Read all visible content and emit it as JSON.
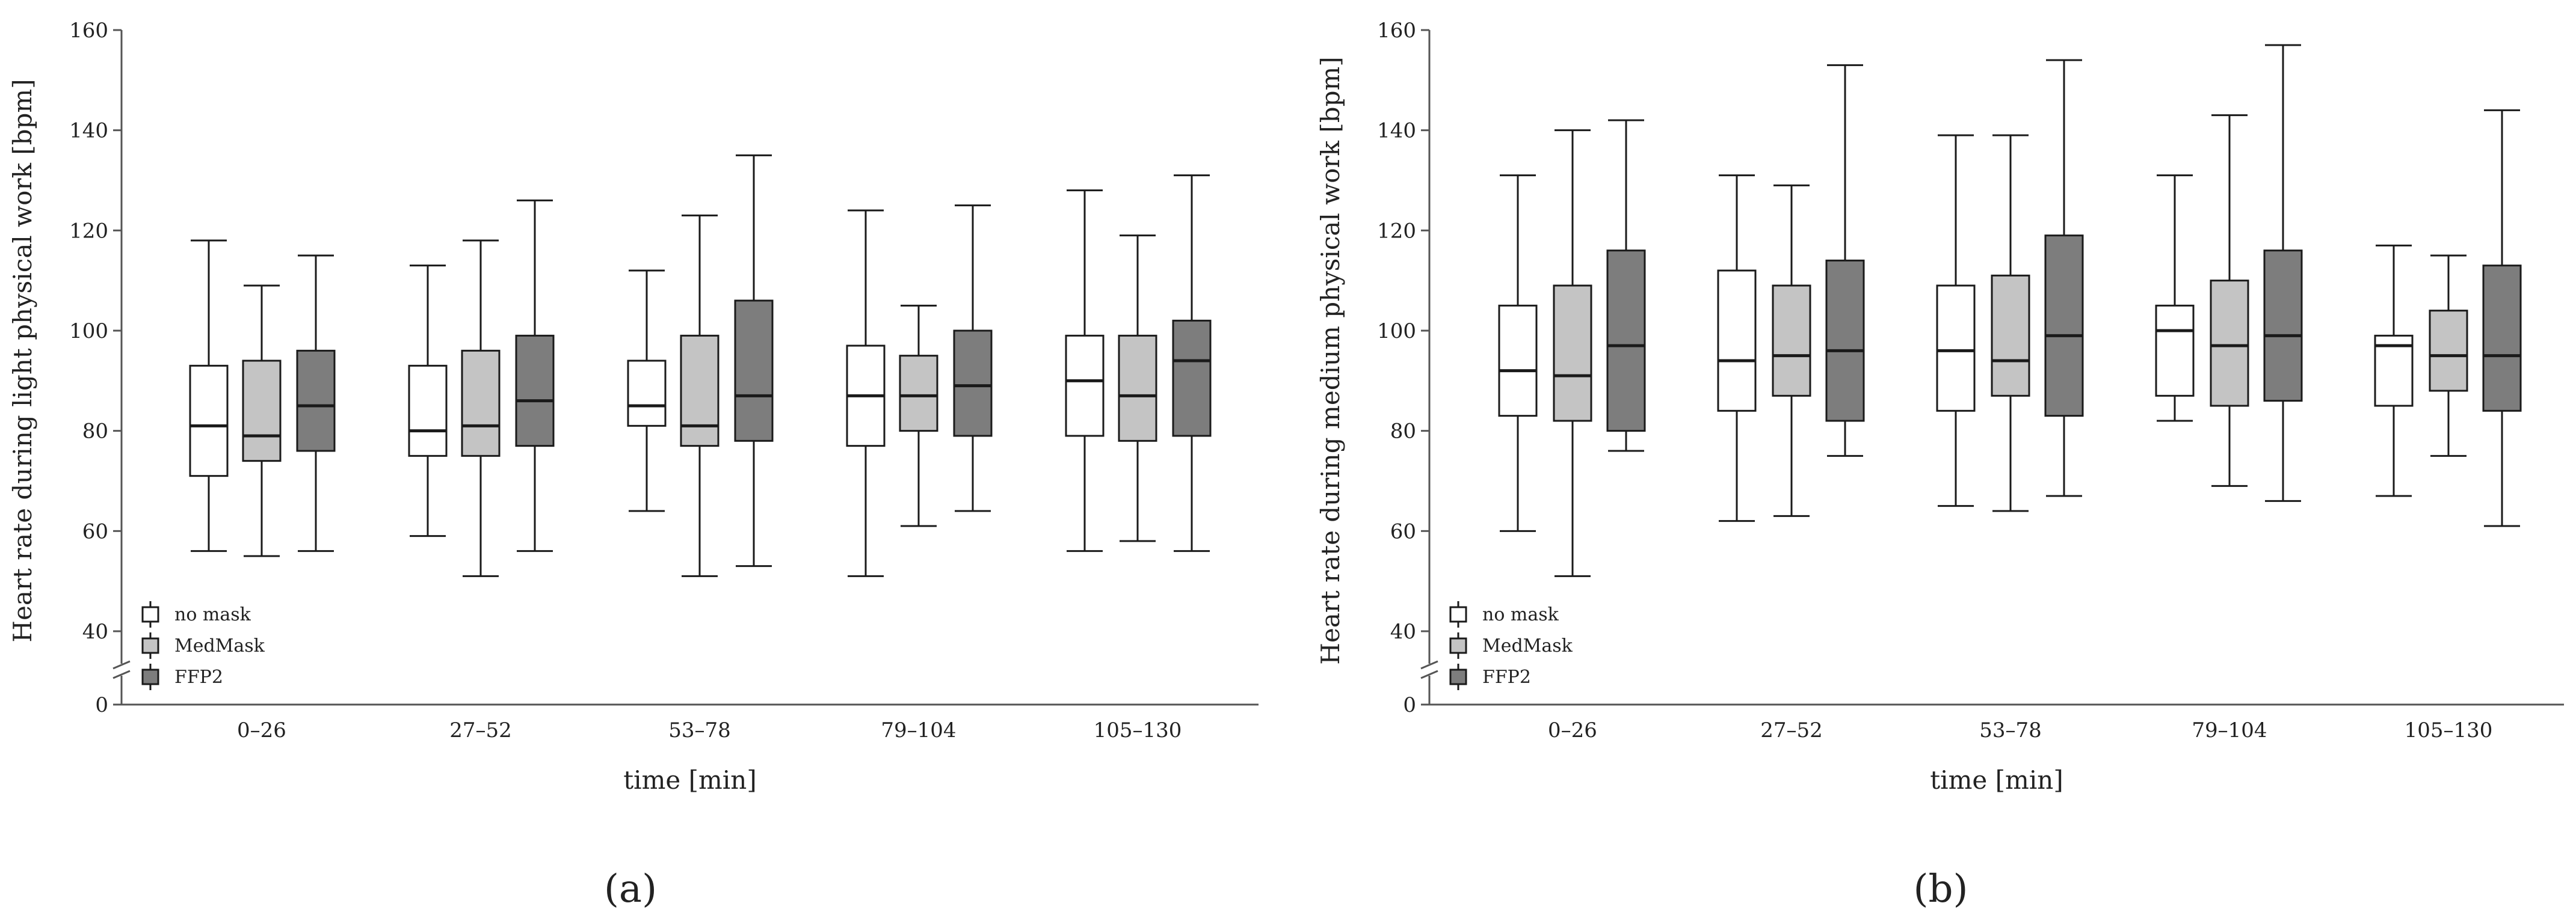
{
  "colors": {
    "nomask": "#ffffff",
    "medmask": "#c4c4c4",
    "ffp2": "#7d7d7d",
    "stroke": "#1a1a1a",
    "axis": "#555555"
  },
  "legend": [
    {
      "label": "no mask",
      "color": "#ffffff"
    },
    {
      "label": "MedMask",
      "color": "#c4c4c4"
    },
    {
      "label": "FFP2",
      "color": "#7d7d7d"
    }
  ],
  "chart_data": [
    {
      "type": "boxplot",
      "panel": "a",
      "panel_label": "(a)",
      "xlabel": "time [min]",
      "ylabel": "Heart rate during light physical work [bpm]",
      "ylim": [
        0,
        160
      ],
      "axis_break": [
        0,
        40
      ],
      "yticks": [
        0,
        40,
        60,
        80,
        100,
        120,
        140,
        160
      ],
      "categories": [
        "0–26",
        "27–52",
        "53–78",
        "79–104",
        "105–130"
      ],
      "series": [
        {
          "name": "no mask",
          "boxes": [
            {
              "min": 56,
              "q1": 71,
              "median": 81,
              "q3": 93,
              "max": 118
            },
            {
              "min": 59,
              "q1": 75,
              "median": 80,
              "q3": 93,
              "max": 113
            },
            {
              "min": 64,
              "q1": 81,
              "median": 85,
              "q3": 94,
              "max": 112
            },
            {
              "min": 51,
              "q1": 77,
              "median": 87,
              "q3": 97,
              "max": 124
            },
            {
              "min": 56,
              "q1": 79,
              "median": 90,
              "q3": 99,
              "max": 128
            }
          ]
        },
        {
          "name": "MedMask",
          "boxes": [
            {
              "min": 55,
              "q1": 74,
              "median": 79,
              "q3": 94,
              "max": 109
            },
            {
              "min": 51,
              "q1": 75,
              "median": 81,
              "q3": 96,
              "max": 118
            },
            {
              "min": 51,
              "q1": 77,
              "median": 81,
              "q3": 99,
              "max": 123
            },
            {
              "min": 61,
              "q1": 80,
              "median": 87,
              "q3": 95,
              "max": 105
            },
            {
              "min": 58,
              "q1": 78,
              "median": 87,
              "q3": 99,
              "max": 119
            }
          ]
        },
        {
          "name": "FFP2",
          "boxes": [
            {
              "min": 56,
              "q1": 76,
              "median": 85,
              "q3": 96,
              "max": 115
            },
            {
              "min": 56,
              "q1": 77,
              "median": 86,
              "q3": 99,
              "max": 126
            },
            {
              "min": 53,
              "q1": 78,
              "median": 87,
              "q3": 106,
              "max": 135
            },
            {
              "min": 64,
              "q1": 79,
              "median": 89,
              "q3": 100,
              "max": 125
            },
            {
              "min": 56,
              "q1": 79,
              "median": 94,
              "q3": 102,
              "max": 131
            }
          ]
        }
      ]
    },
    {
      "type": "boxplot",
      "panel": "b",
      "panel_label": "(b)",
      "xlabel": "time [min]",
      "ylabel": "Heart rate during medium physical work [bpm]",
      "ylim": [
        0,
        160
      ],
      "axis_break": [
        0,
        40
      ],
      "yticks": [
        0,
        40,
        60,
        80,
        100,
        120,
        140,
        160
      ],
      "categories": [
        "0–26",
        "27–52",
        "53–78",
        "79–104",
        "105–130"
      ],
      "series": [
        {
          "name": "no mask",
          "boxes": [
            {
              "min": 60,
              "q1": 83,
              "median": 92,
              "q3": 105,
              "max": 131
            },
            {
              "min": 62,
              "q1": 84,
              "median": 94,
              "q3": 112,
              "max": 131
            },
            {
              "min": 65,
              "q1": 84,
              "median": 96,
              "q3": 109,
              "max": 139
            },
            {
              "min": 82,
              "q1": 87,
              "median": 100,
              "q3": 105,
              "max": 131
            },
            {
              "min": 67,
              "q1": 85,
              "median": 97,
              "q3": 99,
              "max": 117
            }
          ]
        },
        {
          "name": "MedMask",
          "boxes": [
            {
              "min": 51,
              "q1": 82,
              "median": 91,
              "q3": 109,
              "max": 140
            },
            {
              "min": 63,
              "q1": 87,
              "median": 95,
              "q3": 109,
              "max": 129
            },
            {
              "min": 64,
              "q1": 87,
              "median": 94,
              "q3": 111,
              "max": 139
            },
            {
              "min": 69,
              "q1": 85,
              "median": 97,
              "q3": 110,
              "max": 143
            },
            {
              "min": 75,
              "q1": 88,
              "median": 95,
              "q3": 104,
              "max": 115
            }
          ]
        },
        {
          "name": "FFP2",
          "boxes": [
            {
              "min": 76,
              "q1": 80,
              "median": 97,
              "q3": 116,
              "max": 142
            },
            {
              "min": 75,
              "q1": 82,
              "median": 96,
              "q3": 114,
              "max": 153
            },
            {
              "min": 67,
              "q1": 83,
              "median": 99,
              "q3": 119,
              "max": 154
            },
            {
              "min": 66,
              "q1": 86,
              "median": 99,
              "q3": 116,
              "max": 157
            },
            {
              "min": 61,
              "q1": 84,
              "median": 95,
              "q3": 113,
              "max": 144
            }
          ]
        }
      ]
    }
  ]
}
